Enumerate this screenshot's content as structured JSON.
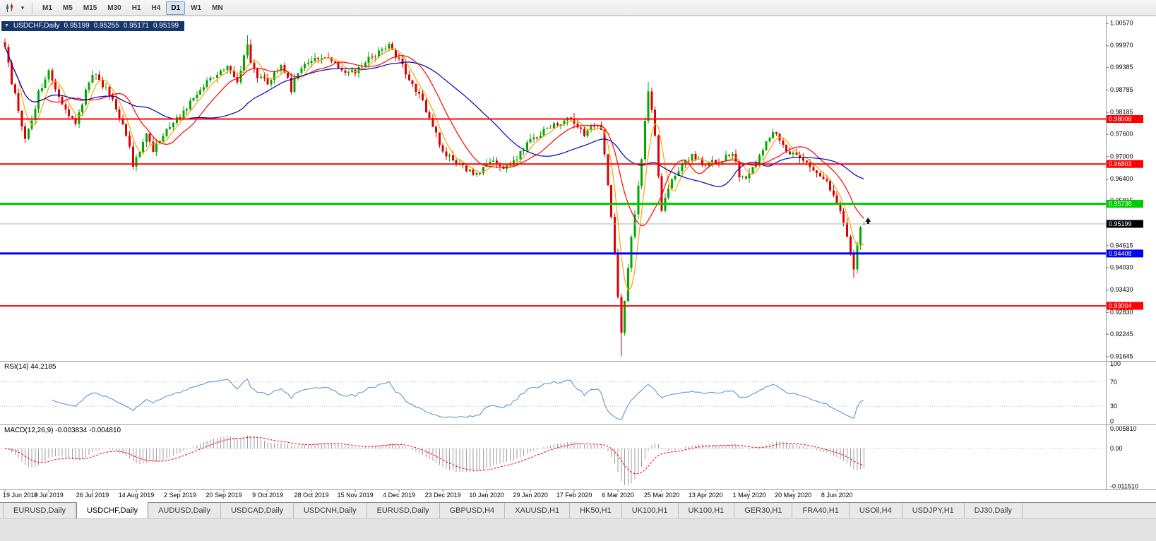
{
  "toolbar": {
    "icons": [
      {
        "name": "candlestick-chart-icon"
      },
      {
        "name": "chevron-down-icon",
        "glyph": "▾"
      }
    ],
    "timeframes": [
      {
        "label": "M1",
        "active": false
      },
      {
        "label": "M5",
        "active": false
      },
      {
        "label": "M15",
        "active": false
      },
      {
        "label": "M30",
        "active": false
      },
      {
        "label": "H1",
        "active": false
      },
      {
        "label": "H4",
        "active": false
      },
      {
        "label": "D1",
        "active": true
      },
      {
        "label": "W1",
        "active": false
      },
      {
        "label": "MN",
        "active": false
      }
    ]
  },
  "chart_title": {
    "symbol": "USDCHF,Daily",
    "open": "0.95199",
    "high": "0.95255",
    "low": "0.95171",
    "close": "0.95199"
  },
  "chart_data": {
    "type": "candlestick",
    "symbol": "USDCHF",
    "timeframe": "Daily",
    "ohlc": {
      "open": 0.95199,
      "high": 0.95255,
      "low": 0.95171,
      "close": 0.95199
    },
    "y_axis": {
      "ticks": [
        "1.00570",
        "0.99970",
        "0.99385",
        "0.98785",
        "0.98185",
        "0.97600",
        "0.97000",
        "0.96400",
        "0.95815",
        "0.94615",
        "0.94030",
        "0.93430",
        "0.92830",
        "0.92245",
        "0.91645"
      ]
    },
    "x_axis": {
      "labels": [
        "19 Jun 2019",
        "8 Jul 2019",
        "26 Jul 2019",
        "14 Aug 2019",
        "2 Sep 2019",
        "20 Sep 2019",
        "9 Oct 2019",
        "28 Oct 2019",
        "15 Nov 2019",
        "4 Dec 2019",
        "23 Dec 2019",
        "10 Jan 2020",
        "29 Jan 2020",
        "17 Feb 2020",
        "6 Mar 2020",
        "25 Mar 2020",
        "13 Apr 2020",
        "1 May 2020",
        "20 May 2020",
        "8 Jun 2020"
      ],
      "candles_per_label": 13
    },
    "num_candles": 256,
    "candle_colors": {
      "up": "#00A800",
      "down": "#DE0000"
    },
    "price_path_anchors": [
      [
        0,
        0.9995
      ],
      [
        2,
        0.99
      ],
      [
        4,
        0.9825
      ],
      [
        6,
        0.9745
      ],
      [
        8,
        0.98
      ],
      [
        10,
        0.987
      ],
      [
        13,
        0.9925
      ],
      [
        15,
        0.988
      ],
      [
        17,
        0.9845
      ],
      [
        19,
        0.9815
      ],
      [
        21,
        0.9795
      ],
      [
        23,
        0.9845
      ],
      [
        26,
        0.9925
      ],
      [
        28,
        0.9905
      ],
      [
        30,
        0.988
      ],
      [
        33,
        0.983
      ],
      [
        35,
        0.979
      ],
      [
        37,
        0.9725
      ],
      [
        38,
        0.968
      ],
      [
        40,
        0.972
      ],
      [
        42,
        0.976
      ],
      [
        44,
        0.9715
      ],
      [
        46,
        0.9745
      ],
      [
        48,
        0.9775
      ],
      [
        50,
        0.979
      ],
      [
        52,
        0.981
      ],
      [
        55,
        0.9845
      ],
      [
        58,
        0.988
      ],
      [
        61,
        0.991
      ],
      [
        64,
        0.9925
      ],
      [
        66,
        0.9935
      ],
      [
        69,
        0.9905
      ],
      [
        71,
        0.9965
      ],
      [
        72,
        1.0005
      ],
      [
        73,
        0.995
      ],
      [
        75,
        0.9915
      ],
      [
        78,
        0.99
      ],
      [
        80,
        0.9925
      ],
      [
        82,
        0.994
      ],
      [
        84,
        0.991
      ],
      [
        85,
        0.988
      ],
      [
        87,
        0.993
      ],
      [
        89,
        0.9955
      ],
      [
        92,
        0.9965
      ],
      [
        95,
        0.997
      ],
      [
        98,
        0.9945
      ],
      [
        101,
        0.9925
      ],
      [
        104,
        0.993
      ],
      [
        107,
        0.9955
      ],
      [
        110,
        0.9975
      ],
      [
        113,
        0.999
      ],
      [
        114,
        1.0
      ],
      [
        116,
        0.997
      ],
      [
        118,
        0.9945
      ],
      [
        120,
        0.9905
      ],
      [
        122,
        0.988
      ],
      [
        124,
        0.9845
      ],
      [
        126,
        0.9805
      ],
      [
        128,
        0.976
      ],
      [
        130,
        0.9715
      ],
      [
        132,
        0.97
      ],
      [
        134,
        0.9685
      ],
      [
        136,
        0.9675
      ],
      [
        138,
        0.966
      ],
      [
        140,
        0.9655
      ],
      [
        142,
        0.967
      ],
      [
        144,
        0.969
      ],
      [
        146,
        0.968
      ],
      [
        148,
        0.9665
      ],
      [
        150,
        0.968
      ],
      [
        152,
        0.9695
      ],
      [
        154,
        0.972
      ],
      [
        156,
        0.9745
      ],
      [
        158,
        0.9755
      ],
      [
        160,
        0.977
      ],
      [
        162,
        0.978
      ],
      [
        164,
        0.9785
      ],
      [
        166,
        0.98
      ],
      [
        168,
        0.981
      ],
      [
        170,
        0.978
      ],
      [
        172,
        0.976
      ],
      [
        174,
        0.9775
      ],
      [
        176,
        0.979
      ],
      [
        177,
        0.977
      ],
      [
        178,
        0.97
      ],
      [
        179,
        0.963
      ],
      [
        180,
        0.954
      ],
      [
        181,
        0.944
      ],
      [
        182,
        0.933
      ],
      [
        183,
        0.923
      ],
      [
        184,
        0.931
      ],
      [
        185,
        0.94
      ],
      [
        186,
        0.948
      ],
      [
        187,
        0.955
      ],
      [
        188,
        0.9625
      ],
      [
        189,
        0.97
      ],
      [
        190,
        0.98
      ],
      [
        191,
        0.987
      ],
      [
        192,
        0.982
      ],
      [
        193,
        0.976
      ],
      [
        194,
        0.965
      ],
      [
        195,
        0.956
      ],
      [
        196,
        0.959
      ],
      [
        197,
        0.962
      ],
      [
        198,
        0.964
      ],
      [
        200,
        0.966
      ],
      [
        202,
        0.9685
      ],
      [
        204,
        0.97
      ],
      [
        206,
        0.969
      ],
      [
        208,
        0.9675
      ],
      [
        210,
        0.969
      ],
      [
        212,
        0.968
      ],
      [
        214,
        0.97
      ],
      [
        216,
        0.9715
      ],
      [
        218,
        0.965
      ],
      [
        220,
        0.964
      ],
      [
        222,
        0.9675
      ],
      [
        224,
        0.97
      ],
      [
        226,
        0.9745
      ],
      [
        228,
        0.977
      ],
      [
        230,
        0.974
      ],
      [
        232,
        0.9715
      ],
      [
        234,
        0.9705
      ],
      [
        236,
        0.97
      ],
      [
        238,
        0.9685
      ],
      [
        240,
        0.967
      ],
      [
        242,
        0.965
      ],
      [
        244,
        0.963
      ],
      [
        246,
        0.959
      ],
      [
        248,
        0.956
      ],
      [
        249,
        0.952
      ],
      [
        250,
        0.9485
      ],
      [
        251,
        0.944
      ],
      [
        252,
        0.94
      ],
      [
        253,
        0.947
      ],
      [
        254,
        0.9515
      ],
      [
        255,
        0.95199
      ]
    ],
    "wick_overrides": [
      {
        "day": 72,
        "high": 1.0025
      },
      {
        "day": 114,
        "high": 1.0008
      },
      {
        "day": 183,
        "low": 0.9165
      },
      {
        "day": 191,
        "high": 0.99
      },
      {
        "day": 252,
        "low": 0.9375
      }
    ],
    "last_candle": {
      "open": 0.95199,
      "high": 0.95255,
      "low": 0.95171,
      "close": 0.95199
    },
    "moving_averages": [
      {
        "type": "sma",
        "period": 5,
        "color": "#FFA200",
        "name": "ma-fast-orange"
      },
      {
        "type": "sma",
        "period": 13,
        "color": "#FF0000",
        "name": "ma-mid-red"
      },
      {
        "type": "sma",
        "period": 34,
        "color": "#0000C0",
        "name": "ma-slow-blue"
      }
    ],
    "horizontal_lines": [
      {
        "price": 0.98008,
        "label": "0.98008",
        "color": "#FF0000",
        "width": 2
      },
      {
        "price": 0.96803,
        "label": "0.96803",
        "color": "#FF0000",
        "width": 2
      },
      {
        "price": 0.95738,
        "label": "0.95738",
        "color": "#00CC00",
        "width": 3
      },
      {
        "price": 0.94408,
        "label": "0.94408",
        "color": "#0000F0",
        "width": 3
      },
      {
        "price": 0.93004,
        "label": "0.93004",
        "color": "#FF0000",
        "width": 2
      }
    ],
    "current_price": {
      "value": 0.95199,
      "label": "0.95199",
      "box_color": "#000000",
      "line_color": "#b0b0b0"
    },
    "rsi": {
      "label": "RSI(14) 44.2185",
      "period": 14,
      "value": 44.2185,
      "levels": [
        100,
        70,
        30,
        0
      ],
      "line_color": "#4C8FCB",
      "level_line_color": "#c0c0c0"
    },
    "macd": {
      "label": "MACD(12,26,9) -0.003834 -0.004810",
      "fast": 12,
      "slow": 26,
      "signal_period": 9,
      "main_value": -0.003834,
      "signal_value": -0.00481,
      "axis_labels": [
        "0.005810",
        "0.00",
        "-0.011510"
      ],
      "max": 0.00581,
      "min": -0.01151,
      "histogram_color": "#9E9E9E",
      "signal_color": "#FF0000"
    }
  },
  "tabs": [
    {
      "label": "EURUSD,Daily",
      "active": false
    },
    {
      "label": "USDCHF,Daily",
      "active": true
    },
    {
      "label": "AUDUSD,Daily",
      "active": false
    },
    {
      "label": "USDCAD,Daily",
      "active": false
    },
    {
      "label": "USDCNH,Daily",
      "active": false
    },
    {
      "label": "EURUSD,Daily",
      "active": false
    },
    {
      "label": "GBPUSD,H4",
      "active": false
    },
    {
      "label": "XAUUSD,H1",
      "active": false
    },
    {
      "label": "HK50,H1",
      "active": false
    },
    {
      "label": "UK100,H1",
      "active": false
    },
    {
      "label": "UK100,H1",
      "active": false
    },
    {
      "label": "GER30,H1",
      "active": false
    },
    {
      "label": "FRA40,H1",
      "active": false
    },
    {
      "label": "USOil,H4",
      "active": false
    },
    {
      "label": "USDJPY,H1",
      "active": false
    },
    {
      "label": "DJ30,Daily",
      "active": false
    }
  ]
}
